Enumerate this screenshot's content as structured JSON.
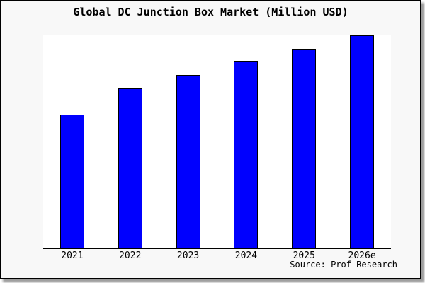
{
  "chart": {
    "title": "Global DC Junction Box Market (Million USD)",
    "source_credit": "Source: Prof Research"
  },
  "colors": {
    "bar_fill": "#0000FE",
    "bar_border": "#000000",
    "plot_background": "#FFFFFF",
    "figure_background": "#F8F8F8",
    "frame_border": "#000000",
    "frame_shadow": "#9B9B9B",
    "text": "#000000"
  },
  "chart_data": {
    "type": "bar",
    "title": "Global DC Junction Box Market (Million USD)",
    "categories": [
      "2021",
      "2022",
      "2023",
      "2024",
      "2025",
      "2026e"
    ],
    "values": [
      62.8,
      75.1,
      81.5,
      88.0,
      93.8,
      100
    ],
    "value_note": "No y-axis scale is shown in the image; values are bar heights expressed as % of the tallest bar (2026e = 100).",
    "xlabel": "",
    "ylabel": "",
    "ylim": [
      0,
      100.5
    ],
    "grid": false,
    "legend": null,
    "annotations": [
      "Source: Prof Research"
    ],
    "bar_color": "#0000FE",
    "bar_border_color": "#000000"
  }
}
